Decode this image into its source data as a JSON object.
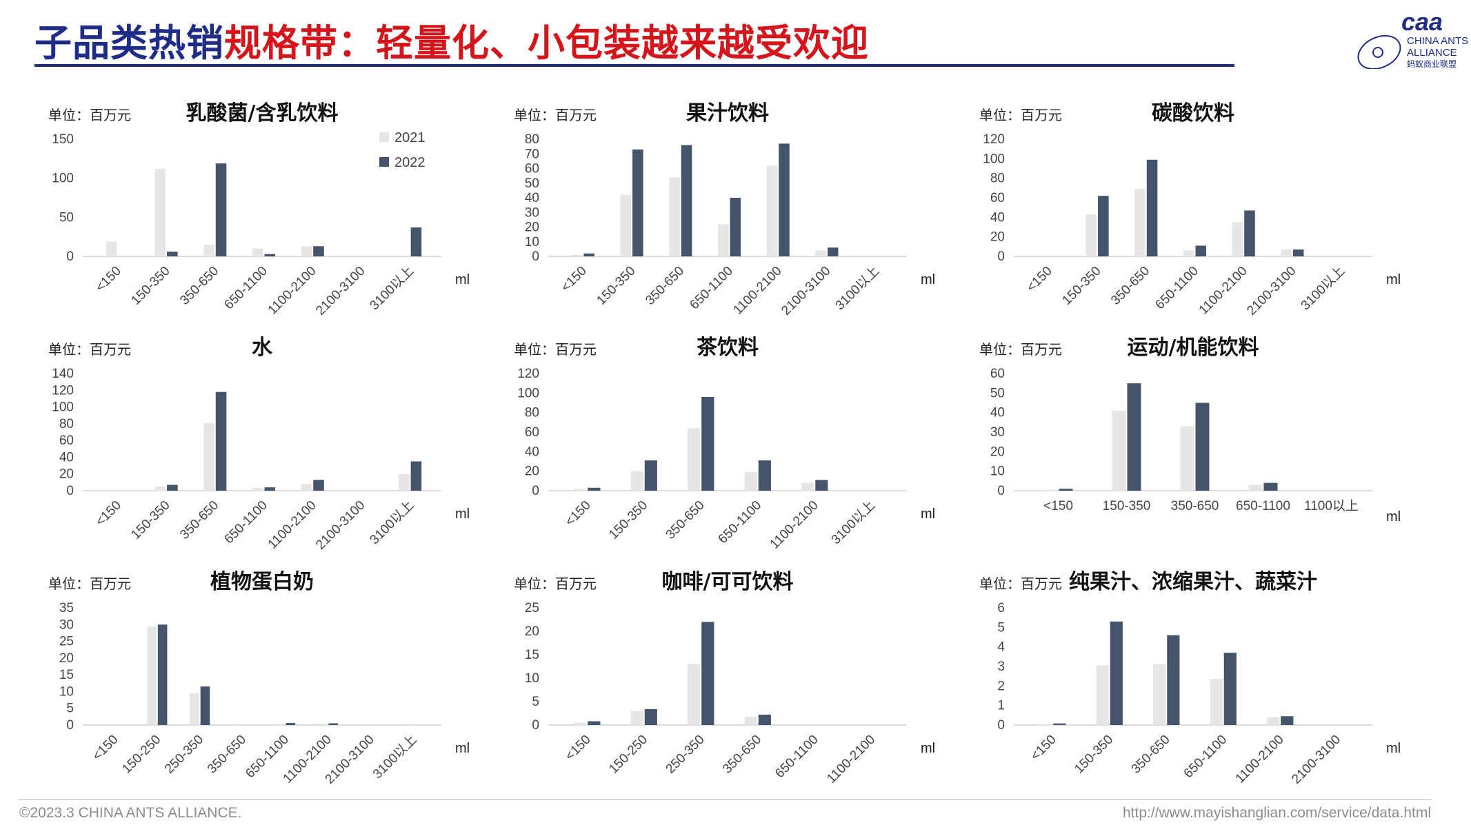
{
  "header": {
    "title_part1": "子品类热销",
    "title_part2": "规格带：轻量化、小包装越来越受欢迎"
  },
  "logo": {
    "mark": "caa",
    "line1": "CHINA ANTS",
    "line2": "ALLIANCE",
    "line3": "蚂蚁商业联盟"
  },
  "footer": {
    "copyright": "©2023.3 CHINA ANTS ALLIANCE.",
    "url": "http://www.mayishanglian.com/service/data.html"
  },
  "colors": {
    "y2021": "#e6e6e6",
    "y2022": "#44546a",
    "title_blue": "#1f2d86",
    "title_red": "#d4161c"
  },
  "chart_data": [
    {
      "type": "bar",
      "title": "乳酸菌/含乳饮料",
      "unit": "单位：百万元",
      "xunit": "ml",
      "categories": [
        "<150",
        "150-350",
        "350-650",
        "650-1100",
        "1100-2100",
        "2100-3100",
        "3100以上"
      ],
      "ylim": [
        0,
        150
      ],
      "yticks": [
        0,
        50,
        100,
        150
      ],
      "rotate": true,
      "legend": [
        "2021",
        "2022"
      ],
      "series": [
        {
          "name": "2021",
          "values": [
            19,
            112,
            15,
            10,
            13,
            0,
            0
          ]
        },
        {
          "name": "2022",
          "values": [
            0,
            6,
            119,
            3,
            13,
            0,
            37
          ]
        }
      ]
    },
    {
      "type": "bar",
      "title": "果汁饮料",
      "unit": "单位：百万元",
      "xunit": "ml",
      "categories": [
        "<150",
        "150-350",
        "350-650",
        "650-1100",
        "1100-2100",
        "2100-3100",
        "3100以上"
      ],
      "ylim": [
        0,
        80
      ],
      "yticks": [
        0,
        10,
        20,
        30,
        40,
        50,
        60,
        70,
        80
      ],
      "rotate": true,
      "series": [
        {
          "name": "2021",
          "values": [
            1,
            42,
            54,
            22,
            62,
            4,
            0
          ]
        },
        {
          "name": "2022",
          "values": [
            2,
            73,
            76,
            40,
            77,
            6,
            0
          ]
        }
      ]
    },
    {
      "type": "bar",
      "title": "碳酸饮料",
      "unit": "单位：百万元",
      "xunit": "ml",
      "categories": [
        "<150",
        "150-350",
        "350-650",
        "650-1100",
        "1100-2100",
        "2100-3100",
        "3100以上"
      ],
      "ylim": [
        0,
        120
      ],
      "yticks": [
        0,
        20,
        40,
        60,
        80,
        100,
        120
      ],
      "rotate": true,
      "series": [
        {
          "name": "2021",
          "values": [
            0,
            43,
            69,
            6,
            35,
            7,
            0
          ]
        },
        {
          "name": "2022",
          "values": [
            0,
            62,
            99,
            11,
            47,
            7,
            0
          ]
        }
      ]
    },
    {
      "type": "bar",
      "title": "水",
      "unit": "单位：百万元",
      "xunit": "ml",
      "categories": [
        "<150",
        "150-350",
        "350-650",
        "650-1100",
        "1100-2100",
        "2100-3100",
        "3100以上"
      ],
      "ylim": [
        0,
        140
      ],
      "yticks": [
        0,
        20,
        40,
        60,
        80,
        100,
        120,
        140
      ],
      "rotate": true,
      "series": [
        {
          "name": "2021",
          "values": [
            0,
            5,
            81,
            3,
            8,
            0,
            20
          ]
        },
        {
          "name": "2022",
          "values": [
            0,
            7,
            118,
            4,
            13,
            0,
            35
          ]
        }
      ]
    },
    {
      "type": "bar",
      "title": "茶饮料",
      "unit": "单位：百万元",
      "xunit": "ml",
      "categories": [
        "<150",
        "150-350",
        "350-650",
        "650-1100",
        "1100-2100",
        "3100以上"
      ],
      "ylim": [
        0,
        120
      ],
      "yticks": [
        0,
        20,
        40,
        60,
        80,
        100,
        120
      ],
      "rotate": true,
      "series": [
        {
          "name": "2021",
          "values": [
            2,
            20,
            64,
            19,
            8,
            0
          ]
        },
        {
          "name": "2022",
          "values": [
            3,
            31,
            96,
            31,
            11,
            0
          ]
        }
      ]
    },
    {
      "type": "bar",
      "title": "运动/机能饮料",
      "unit": "单位：百万元",
      "xunit": "ml",
      "categories": [
        "<150",
        "150-350",
        "350-650",
        "650-1100",
        "1100以上"
      ],
      "ylim": [
        0,
        60
      ],
      "yticks": [
        0,
        10,
        20,
        30,
        40,
        50,
        60
      ],
      "rotate": false,
      "series": [
        {
          "name": "2021",
          "values": [
            0.5,
            41,
            33,
            3,
            0
          ]
        },
        {
          "name": "2022",
          "values": [
            1,
            55,
            45,
            4,
            0
          ]
        }
      ]
    },
    {
      "type": "bar",
      "title": "植物蛋白奶",
      "unit": "单位：百万元",
      "xunit": "ml",
      "categories": [
        "<150",
        "150-250",
        "250-350",
        "350-650",
        "650-1100",
        "1100-2100",
        "2100-3100",
        "3100以上"
      ],
      "ylim": [
        0,
        35
      ],
      "yticks": [
        0,
        5,
        10,
        15,
        20,
        25,
        30,
        35
      ],
      "rotate": true,
      "series": [
        {
          "name": "2021",
          "values": [
            0,
            29.5,
            9.5,
            0.2,
            0.3,
            0.4,
            0,
            0.1
          ]
        },
        {
          "name": "2022",
          "values": [
            0,
            30,
            11.5,
            0,
            0.6,
            0.5,
            0,
            0
          ]
        }
      ]
    },
    {
      "type": "bar",
      "title": "咖啡/可可饮料",
      "unit": "单位：百万元",
      "xunit": "ml",
      "categories": [
        "<150",
        "150-250",
        "250-350",
        "350-650",
        "650-1100",
        "1100-2100"
      ],
      "ylim": [
        0,
        25
      ],
      "yticks": [
        0,
        5,
        10,
        15,
        20,
        25
      ],
      "rotate": true,
      "series": [
        {
          "name": "2021",
          "values": [
            0.5,
            3,
            13,
            1.8,
            0,
            0
          ]
        },
        {
          "name": "2022",
          "values": [
            0.8,
            3.4,
            22,
            2.2,
            0,
            0
          ]
        }
      ]
    },
    {
      "type": "bar",
      "title": "纯果汁、浓缩果汁、蔬菜汁",
      "unit": "单位：百万元",
      "xunit": "ml",
      "categories": [
        "<150",
        "150-350",
        "350-650",
        "650-1100",
        "1100-2100",
        "2100-3100"
      ],
      "ylim": [
        0,
        6
      ],
      "yticks": [
        0,
        1,
        2,
        3,
        4,
        5,
        6
      ],
      "rotate": true,
      "series": [
        {
          "name": "2021",
          "values": [
            0.05,
            3.05,
            3.1,
            2.35,
            0.4,
            0
          ]
        },
        {
          "name": "2022",
          "values": [
            0.08,
            5.3,
            4.6,
            3.7,
            0.45,
            0
          ]
        }
      ]
    }
  ]
}
